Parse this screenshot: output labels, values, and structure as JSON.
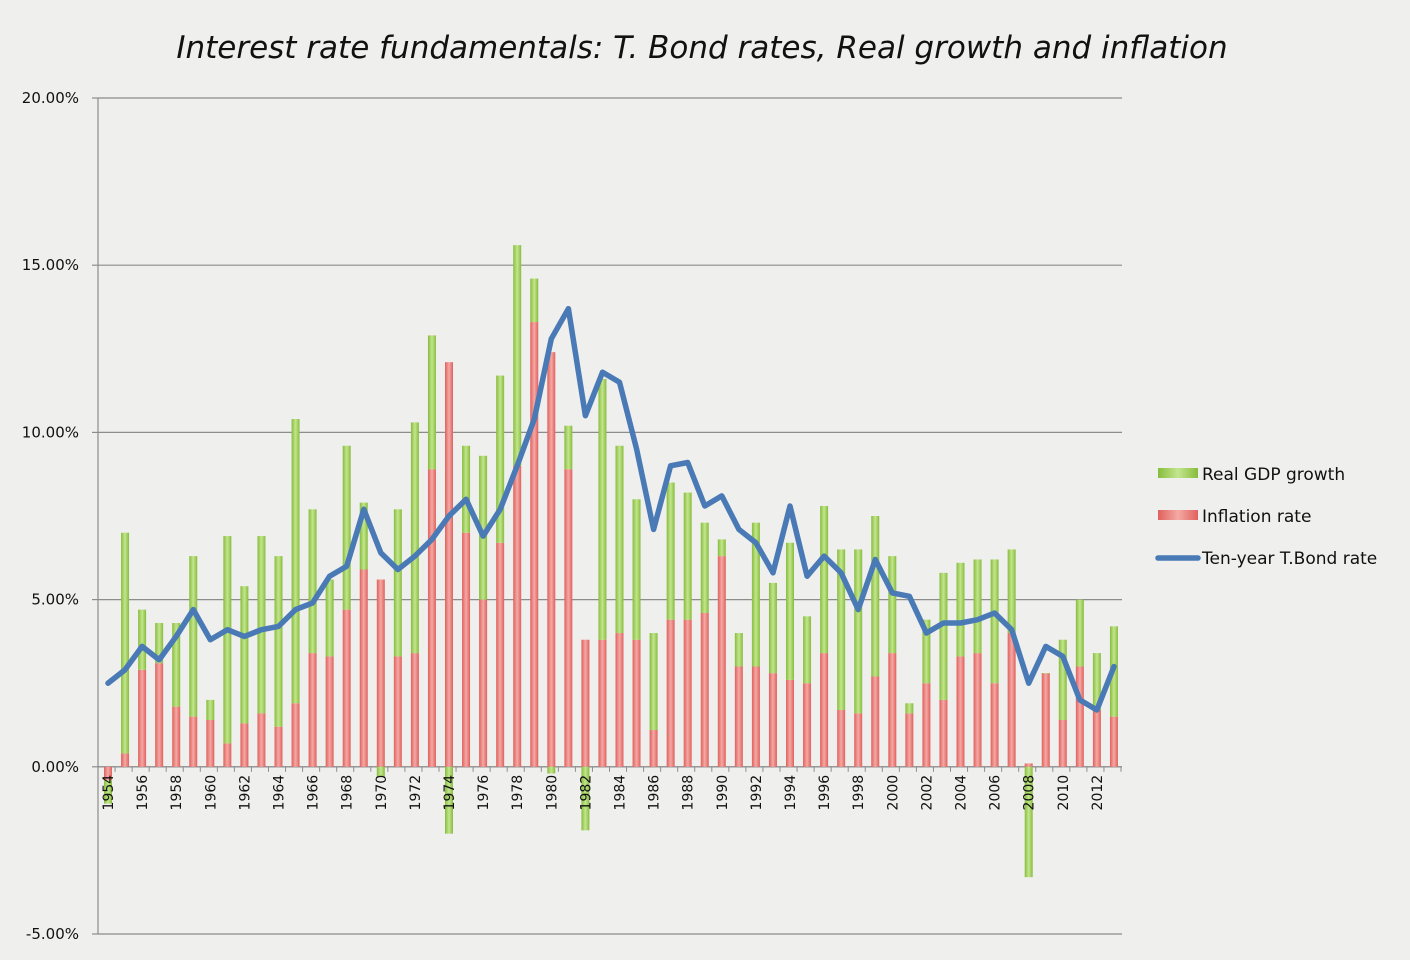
{
  "chart_data": {
    "type": "bar",
    "title": "Interest rate fundamentals: T. Bond rates, Real growth and inflation",
    "x": [
      1954,
      1955,
      1956,
      1957,
      1958,
      1959,
      1960,
      1961,
      1962,
      1963,
      1964,
      1965,
      1966,
      1967,
      1968,
      1969,
      1970,
      1971,
      1972,
      1973,
      1974,
      1975,
      1976,
      1977,
      1978,
      1979,
      1980,
      1981,
      1982,
      1983,
      1984,
      1985,
      1986,
      1987,
      1988,
      1989,
      1990,
      1991,
      1992,
      1993,
      1994,
      1995,
      1996,
      1997,
      1998,
      1999,
      2000,
      2001,
      2002,
      2003,
      2004,
      2005,
      2006,
      2007,
      2008,
      2009,
      2010,
      2011,
      2012,
      2013
    ],
    "x_tick_labels": [
      "1954",
      "1956",
      "1958",
      "1960",
      "1962",
      "1964",
      "1966",
      "1968",
      "1970",
      "1972",
      "1974",
      "1976",
      "1978",
      "1980",
      "1982",
      "1984",
      "1986",
      "1988",
      "1990",
      "1992",
      "1994",
      "1996",
      "1998",
      "2000",
      "2002",
      "2004",
      "2006",
      "2008",
      "2010",
      "2012"
    ],
    "ylim": [
      -5,
      20
    ],
    "yticks": [
      -5,
      0,
      5,
      10,
      15,
      20
    ],
    "ytick_labels": [
      "-5.00%",
      "0.00%",
      "5.00%",
      "10.00%",
      "15.00%",
      "20.00%"
    ],
    "grid": true,
    "legend": "right",
    "stacked": true,
    "series": [
      {
        "name": "Real GDP growth",
        "kind": "bar",
        "color": "#9acd4e",
        "values": [
          -0.7,
          6.6,
          1.8,
          1.2,
          2.5,
          4.8,
          0.6,
          6.2,
          4.1,
          5.3,
          5.1,
          8.5,
          4.3,
          2.3,
          4.9,
          2.0,
          -0.3,
          4.4,
          6.9,
          4.0,
          -2.0,
          2.6,
          4.3,
          5.0,
          6.6,
          1.3,
          -0.2,
          1.3,
          -1.9,
          7.8,
          5.6,
          4.2,
          2.9,
          4.1,
          3.8,
          2.7,
          0.5,
          1.0,
          4.3,
          2.7,
          4.1,
          2.0,
          4.4,
          4.8,
          4.9,
          4.8,
          2.9,
          0.3,
          1.9,
          3.8,
          2.8,
          2.8,
          3.7,
          2.5,
          -3.3,
          0.0,
          2.4,
          2.0,
          1.7,
          2.7
        ]
      },
      {
        "name": "Inflation rate",
        "kind": "bar",
        "color": "#e8736f",
        "values": [
          -0.4,
          0.4,
          2.9,
          3.1,
          1.8,
          1.5,
          1.4,
          0.7,
          1.3,
          1.6,
          1.2,
          1.9,
          3.4,
          3.3,
          4.7,
          5.9,
          5.6,
          3.3,
          3.4,
          8.9,
          12.1,
          7.0,
          5.0,
          6.7,
          9.0,
          13.3,
          12.4,
          8.9,
          3.8,
          3.8,
          4.0,
          3.8,
          1.1,
          4.4,
          4.4,
          4.6,
          6.3,
          3.0,
          3.0,
          2.8,
          2.6,
          2.5,
          3.4,
          1.7,
          1.6,
          2.7,
          3.4,
          1.6,
          2.5,
          2.0,
          3.3,
          3.4,
          2.5,
          4.0,
          0.1,
          2.8,
          1.4,
          3.0,
          1.7,
          1.5
        ]
      },
      {
        "name": "Ten-year T.Bond rate",
        "kind": "line",
        "color": "#4a7ab5",
        "values": [
          2.5,
          2.9,
          3.6,
          3.2,
          3.9,
          4.7,
          3.8,
          4.1,
          3.9,
          4.1,
          4.2,
          4.7,
          4.9,
          5.7,
          6.0,
          7.7,
          6.4,
          5.9,
          6.3,
          6.8,
          7.5,
          8.0,
          6.9,
          7.7,
          9.0,
          10.4,
          12.8,
          13.7,
          10.5,
          11.8,
          11.5,
          9.5,
          7.1,
          9.0,
          9.1,
          7.8,
          8.1,
          7.1,
          6.7,
          5.8,
          7.8,
          5.7,
          6.3,
          5.8,
          4.7,
          6.2,
          5.2,
          5.1,
          4.0,
          4.3,
          4.3,
          4.4,
          4.6,
          4.1,
          2.5,
          3.6,
          3.3,
          2.0,
          1.7,
          3.0
        ]
      }
    ]
  }
}
